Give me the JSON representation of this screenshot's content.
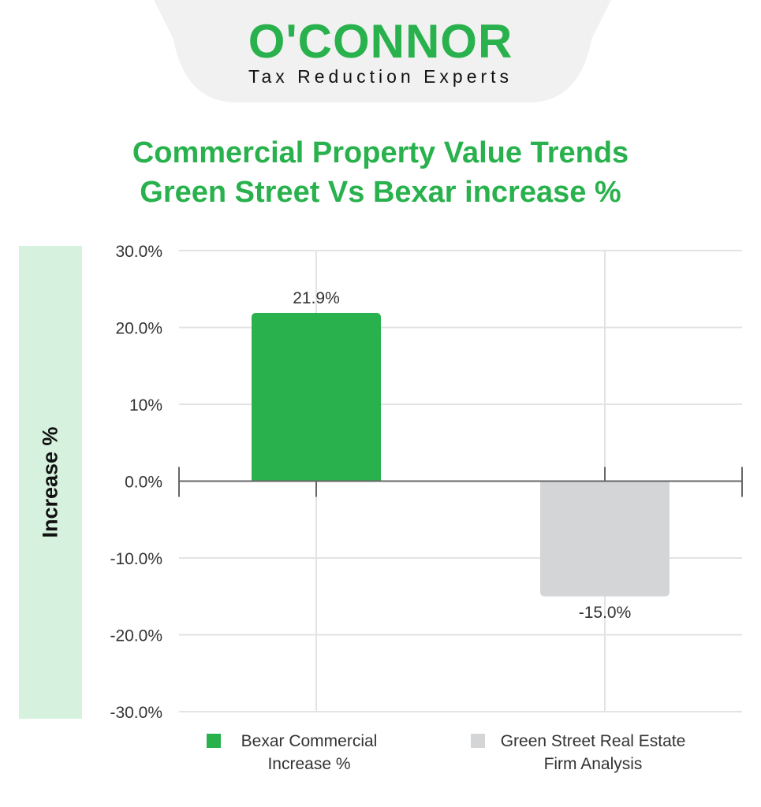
{
  "logo": {
    "brand": "O'CONNOR",
    "tagline": "Tax Reduction Experts"
  },
  "title_lines": [
    "Commercial Property Value Trends",
    "Green Street Vs Bexar increase %"
  ],
  "chart_data": {
    "type": "bar",
    "title": "Commercial Property Value Trends Green Street Vs Bexar increase %",
    "ylabel": "Increase %",
    "xlabel": "",
    "ylim": [
      -30,
      30
    ],
    "yticks": [
      30,
      20,
      10,
      0,
      -10,
      -20,
      -30
    ],
    "ytick_labels": [
      "30.0%",
      "20.0%",
      "10%",
      "0.0%",
      "-10.0%",
      "-20.0%",
      "-30.0%"
    ],
    "grid": true,
    "legend_placement": "bottom",
    "series": [
      {
        "name": "Bexar Commercial Increase %",
        "legend_lines": [
          "Bexar Commercial",
          "Increase %"
        ],
        "value": 21.9,
        "label": "21.9%",
        "color": "#28b14c"
      },
      {
        "name": "Green Street Real Estate Firm Analysis",
        "legend_lines": [
          "Green Street Real Estate",
          "Firm Analysis"
        ],
        "value": -15.0,
        "label": "-15.0%",
        "color": "#d4d5d7"
      }
    ]
  }
}
